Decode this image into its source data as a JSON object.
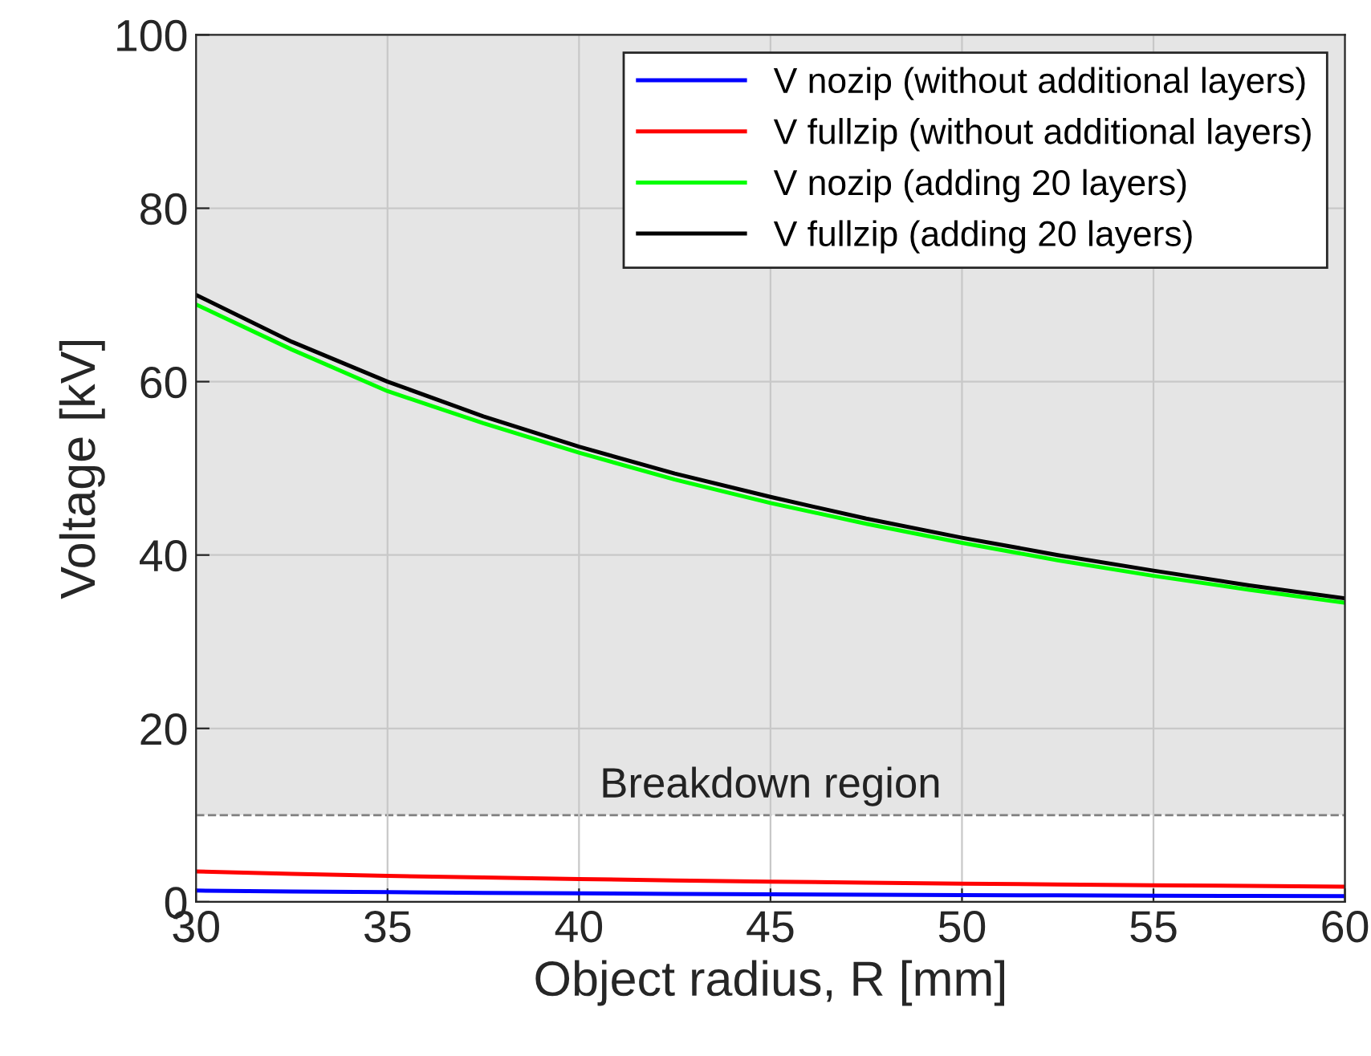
{
  "chart_data": {
    "type": "line",
    "xlabel": "Object radius, R [mm]",
    "ylabel": "Voltage [kV]",
    "x": [
      30,
      32.5,
      35,
      37.5,
      40,
      42.5,
      45,
      47.5,
      50,
      52.5,
      55,
      57.5,
      60
    ],
    "series": [
      {
        "name": "V nozip (without additional layers)",
        "color": "#0000ff",
        "values": [
          1.3,
          1.2,
          1.11,
          1.04,
          0.98,
          0.92,
          0.87,
          0.82,
          0.78,
          0.74,
          0.71,
          0.68,
          0.65
        ]
      },
      {
        "name": "V fullzip (without additional layers)",
        "color": "#ff0000",
        "values": [
          3.5,
          3.23,
          3.0,
          2.8,
          2.63,
          2.47,
          2.33,
          2.21,
          2.1,
          2.0,
          1.91,
          1.83,
          1.75
        ]
      },
      {
        "name": "V nozip (adding 20 layers)",
        "color": "#00ff00",
        "values": [
          68.9,
          63.7,
          58.9,
          55.2,
          51.8,
          48.7,
          46.0,
          43.6,
          41.4,
          39.4,
          37.6,
          36.0,
          34.5
        ]
      },
      {
        "name": "V fullzip (adding 20 layers)",
        "color": "#000000",
        "values": [
          70,
          64.6,
          60,
          56,
          52.5,
          49.4,
          46.7,
          44.2,
          42,
          40,
          38.2,
          36.5,
          35
        ]
      }
    ],
    "xlim": [
      30,
      60
    ],
    "xticks": [
      30,
      35,
      40,
      45,
      50,
      55,
      60
    ],
    "ylim": [
      0,
      100
    ],
    "yticks": [
      0,
      20,
      40,
      60,
      80,
      100
    ],
    "bands": [
      {
        "axis": "y",
        "from": 10,
        "to": 100,
        "color": "#e5e5e5"
      }
    ],
    "ref_lines": [
      {
        "axis": "y",
        "value": 10,
        "label": "Breakdown region",
        "color": "#808080",
        "line_style": "dashed"
      }
    ],
    "grid": true,
    "legend": "top right",
    "line_style": "solid",
    "marker": "none"
  }
}
